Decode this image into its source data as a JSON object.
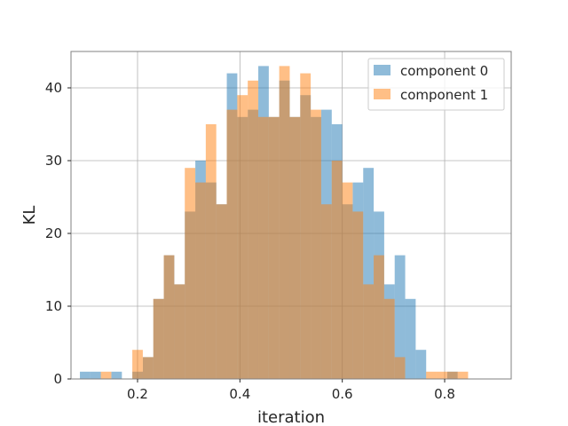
{
  "chart_data": {
    "type": "bar",
    "title": "",
    "xlabel": "iteration",
    "ylabel": "KL",
    "xlim": [
      0.07,
      0.93
    ],
    "ylim": [
      0,
      45
    ],
    "xticks": [
      0.2,
      0.4,
      0.6,
      0.8
    ],
    "xtick_labels": [
      "0.2",
      "0.4",
      "0.6",
      "0.8"
    ],
    "yticks": [
      0,
      10,
      20,
      30,
      40
    ],
    "ytick_labels": [
      "0",
      "10",
      "20",
      "30",
      "40"
    ],
    "grid": true,
    "legend_position": "top-right",
    "bin_width": 0.0205,
    "series": [
      {
        "name": "component 0",
        "color": "#1f77b4",
        "alpha": 0.5,
        "bins": [
          [
            0.0874,
            1
          ],
          [
            0.1079,
            1
          ],
          [
            0.1284,
            0
          ],
          [
            0.1489,
            1
          ],
          [
            0.1694,
            0
          ],
          [
            0.1899,
            1
          ],
          [
            0.2104,
            3
          ],
          [
            0.2309,
            11
          ],
          [
            0.2514,
            17
          ],
          [
            0.2719,
            13
          ],
          [
            0.2924,
            23
          ],
          [
            0.3129,
            30
          ],
          [
            0.3334,
            27
          ],
          [
            0.3539,
            24
          ],
          [
            0.3744,
            42
          ],
          [
            0.3949,
            36
          ],
          [
            0.4154,
            37
          ],
          [
            0.4359,
            43
          ],
          [
            0.4564,
            36
          ],
          [
            0.4769,
            41
          ],
          [
            0.4974,
            36
          ],
          [
            0.5179,
            39
          ],
          [
            0.5384,
            36
          ],
          [
            0.5589,
            37
          ],
          [
            0.5794,
            35
          ],
          [
            0.5999,
            24
          ],
          [
            0.6204,
            27
          ],
          [
            0.6409,
            29
          ],
          [
            0.6614,
            23
          ],
          [
            0.6819,
            13
          ],
          [
            0.7024,
            17
          ],
          [
            0.7229,
            11
          ],
          [
            0.7434,
            4
          ],
          [
            0.7639,
            0
          ],
          [
            0.7844,
            0
          ],
          [
            0.8049,
            1
          ]
        ]
      },
      {
        "name": "component 1",
        "color": "#ff7f0e",
        "alpha": 0.5,
        "bins": [
          [
            0.1283,
            1
          ],
          [
            0.1488,
            0
          ],
          [
            0.1693,
            0
          ],
          [
            0.1898,
            4
          ],
          [
            0.2103,
            3
          ],
          [
            0.2308,
            11
          ],
          [
            0.2513,
            17
          ],
          [
            0.2718,
            13
          ],
          [
            0.2923,
            29
          ],
          [
            0.3128,
            27
          ],
          [
            0.3333,
            35
          ],
          [
            0.3538,
            24
          ],
          [
            0.3743,
            37
          ],
          [
            0.3948,
            39
          ],
          [
            0.4153,
            41
          ],
          [
            0.4358,
            36
          ],
          [
            0.4563,
            36
          ],
          [
            0.4768,
            43
          ],
          [
            0.4973,
            36
          ],
          [
            0.5178,
            42
          ],
          [
            0.5383,
            37
          ],
          [
            0.5588,
            24
          ],
          [
            0.5793,
            30
          ],
          [
            0.5998,
            27
          ],
          [
            0.6203,
            23
          ],
          [
            0.6408,
            13
          ],
          [
            0.6613,
            17
          ],
          [
            0.6818,
            11
          ],
          [
            0.7023,
            3
          ],
          [
            0.7228,
            0
          ],
          [
            0.7433,
            0
          ],
          [
            0.7638,
            1
          ],
          [
            0.7843,
            1
          ],
          [
            0.8048,
            1
          ],
          [
            0.8253,
            1
          ]
        ]
      }
    ]
  }
}
